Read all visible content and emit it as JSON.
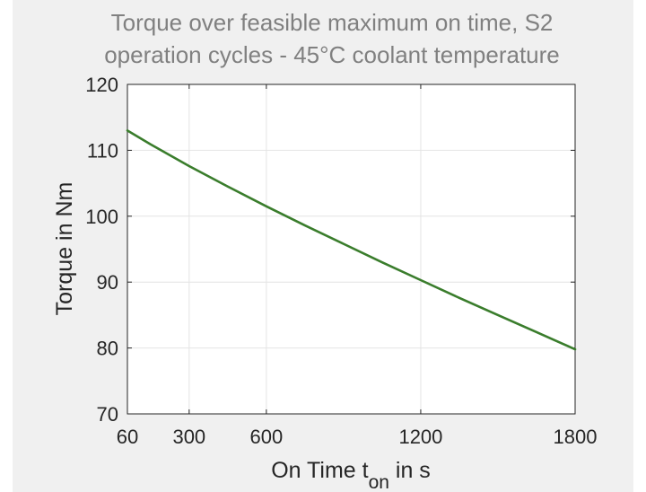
{
  "chart_data": {
    "type": "line",
    "title": [
      "Torque over feasible maximum on time, S2",
      "operation cycles - 45°C coolant temperature"
    ],
    "xlabel": {
      "main": "On Time t",
      "subscript": "on",
      "suffix": " in s"
    },
    "ylabel": "Torque in Nm",
    "xlim": [
      60,
      1800
    ],
    "ylim": [
      70,
      120
    ],
    "xticks": [
      60,
      300,
      600,
      1200,
      1800
    ],
    "yticks": [
      70,
      80,
      90,
      100,
      110,
      120
    ],
    "grid": true,
    "series": [
      {
        "color": "#3a7d2c",
        "x": [
          60,
          150,
          300,
          450,
          600,
          750,
          900,
          1050,
          1200,
          1350,
          1500,
          1650,
          1800
        ],
        "y": [
          113.0,
          110.9,
          107.6,
          104.5,
          101.5,
          98.6,
          95.8,
          93.0,
          90.3,
          87.6,
          85.0,
          82.4,
          79.8
        ]
      }
    ]
  }
}
